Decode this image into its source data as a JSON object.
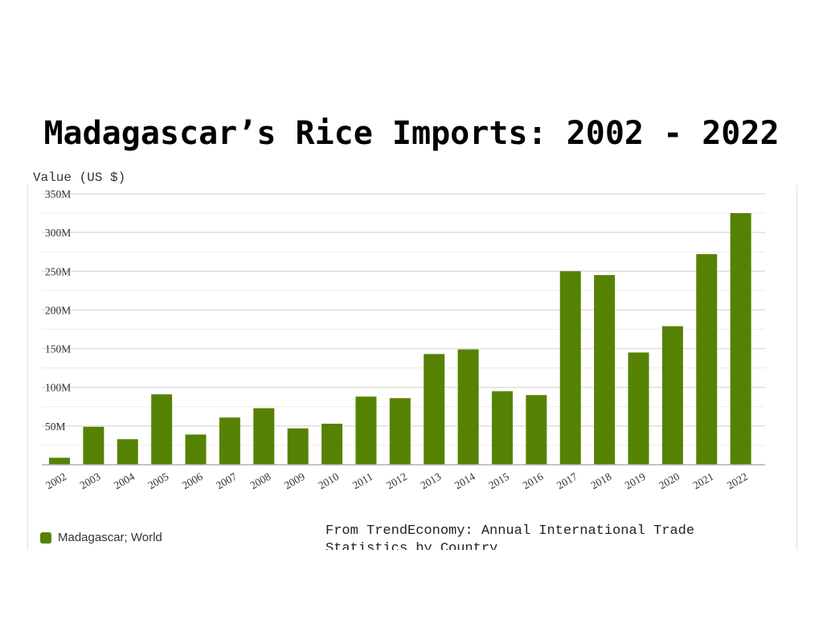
{
  "page": {
    "title": "Madagascar’s Rice Imports: 2002 - 2022",
    "source_note": "From TrendEconomy: Annual International Trade Statistics by Country"
  },
  "chart_data": {
    "type": "bar",
    "title": "Madagascar’s Rice Imports: 2002 - 2022",
    "ylabel": "Value (US $)",
    "xlabel": "",
    "categories": [
      "2002",
      "2003",
      "2004",
      "2005",
      "2006",
      "2007",
      "2008",
      "2009",
      "2010",
      "2011",
      "2012",
      "2013",
      "2014",
      "2015",
      "2016",
      "2017",
      "2018",
      "2019",
      "2020",
      "2021",
      "2022"
    ],
    "series": [
      {
        "name": "Madagascar; World",
        "color": "#568203",
        "values": [
          9,
          49,
          33,
          91,
          39,
          61,
          73,
          47,
          53,
          88,
          86,
          143,
          149,
          95,
          90,
          250,
          245,
          145,
          179,
          272,
          325
        ]
      }
    ],
    "units": "million US $",
    "ylim": [
      0,
      350
    ],
    "yticks": [
      {
        "value": 50,
        "label": "50M"
      },
      {
        "value": 100,
        "label": "100M"
      },
      {
        "value": 150,
        "label": "150M"
      },
      {
        "value": 200,
        "label": "200M"
      },
      {
        "value": 250,
        "label": "250M"
      },
      {
        "value": 300,
        "label": "300M"
      },
      {
        "value": 350,
        "label": "350M"
      }
    ],
    "grid": true,
    "minor_grid": true,
    "legend_position": "bottom-left",
    "colors": {
      "bar": "#568203",
      "grid_major": "#d9d9d9",
      "grid_minor": "#ececec",
      "axis": "#b0b0b0"
    }
  }
}
